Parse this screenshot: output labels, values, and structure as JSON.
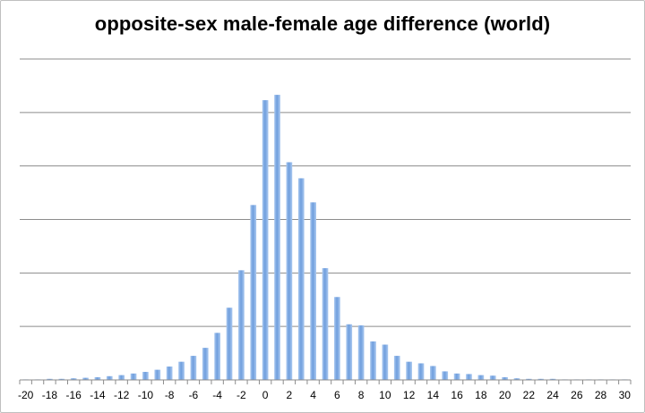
{
  "chart_data": {
    "type": "bar",
    "title": "opposite-sex male-female age difference (world)",
    "xlabel": "",
    "ylabel": "",
    "grid": true,
    "y_tick_labels_shown": false,
    "xlim": [
      -20,
      30
    ],
    "x_tick_labels": [
      "-20",
      "-18",
      "-16",
      "-14",
      "-12",
      "-10",
      "-8",
      "-6",
      "-4",
      "-2",
      "0",
      "2",
      "4",
      "6",
      "8",
      "10",
      "12",
      "14",
      "16",
      "18",
      "20",
      "22",
      "24",
      "26",
      "28",
      "30"
    ],
    "ylim": [
      0,
      6
    ],
    "bar_color": "#7fa9e0",
    "x": [
      -20,
      -19,
      -18,
      -17,
      -16,
      -15,
      -14,
      -13,
      -12,
      -11,
      -10,
      -9,
      -8,
      -7,
      -6,
      -5,
      -4,
      -3,
      -2,
      -1,
      0,
      1,
      2,
      3,
      4,
      5,
      6,
      7,
      8,
      9,
      10,
      11,
      12,
      13,
      14,
      15,
      16,
      17,
      18,
      19,
      20,
      21,
      22,
      23,
      24,
      25,
      26,
      27,
      28,
      29,
      30
    ],
    "values": [
      0.01,
      0.01,
      0.02,
      0.02,
      0.03,
      0.04,
      0.05,
      0.07,
      0.09,
      0.12,
      0.15,
      0.19,
      0.25,
      0.34,
      0.45,
      0.6,
      0.88,
      1.35,
      2.05,
      3.27,
      5.23,
      5.33,
      4.07,
      3.77,
      3.32,
      2.09,
      1.55,
      1.04,
      1.02,
      0.72,
      0.66,
      0.45,
      0.34,
      0.31,
      0.26,
      0.16,
      0.12,
      0.11,
      0.09,
      0.08,
      0.05,
      0.03,
      0.02,
      0.02,
      0.02,
      0.01,
      0.01,
      0.01,
      0.01,
      0.01,
      0.01
    ]
  }
}
